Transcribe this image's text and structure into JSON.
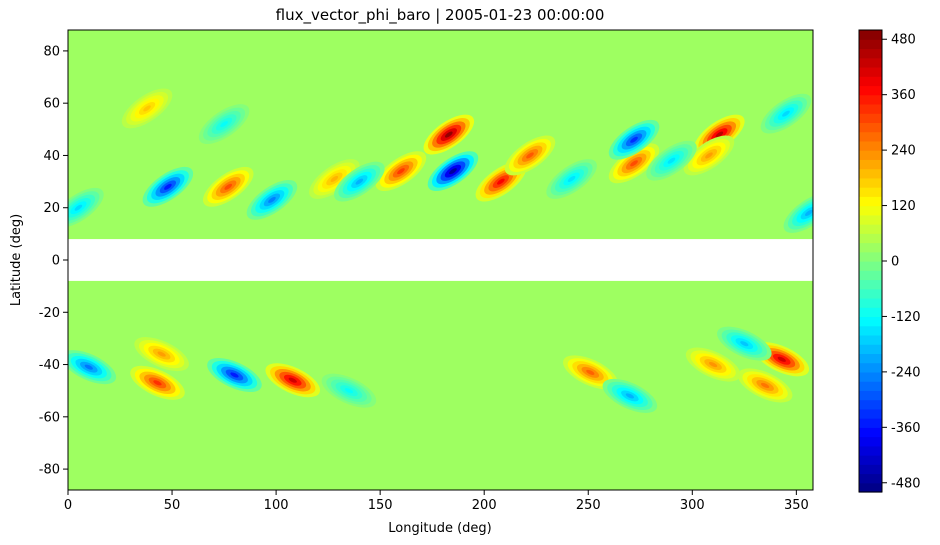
{
  "chart_data": {
    "type": "heatmap",
    "title": "flux_vector_phi_baro | 2005-01-23 00:00:00",
    "xlabel": "Longitude (deg)",
    "ylabel": "Latitude (deg)",
    "xlim": [
      0,
      358
    ],
    "ylim": [
      -88,
      88
    ],
    "x_ticks": [
      0,
      50,
      100,
      150,
      200,
      250,
      300,
      350
    ],
    "y_ticks": [
      -80,
      -60,
      -40,
      -20,
      0,
      20,
      40,
      60,
      80
    ],
    "masked_lat_band": [
      -8,
      8
    ],
    "colormap": "jet",
    "colorbar": {
      "vmin": -500,
      "vmax": 500,
      "ticks": [
        -480,
        -360,
        -240,
        -120,
        0,
        120,
        240,
        360,
        480
      ],
      "placement": "right"
    },
    "background_value": 30,
    "anomalies": [
      {
        "lon": 183,
        "lat": 48,
        "value": 480
      },
      {
        "lon": 208,
        "lat": 30,
        "value": 380
      },
      {
        "lon": 160,
        "lat": 34,
        "value": 320
      },
      {
        "lon": 222,
        "lat": 40,
        "value": 290
      },
      {
        "lon": 77,
        "lat": 28,
        "value": 300
      },
      {
        "lon": 313,
        "lat": 48,
        "value": 440
      },
      {
        "lon": 308,
        "lat": 40,
        "value": 220
      },
      {
        "lon": 272,
        "lat": 37,
        "value": 300
      },
      {
        "lon": 128,
        "lat": 31,
        "value": 200
      },
      {
        "lon": 38,
        "lat": 58,
        "value": 180
      },
      {
        "lon": 185,
        "lat": 34,
        "value": -470
      },
      {
        "lon": 48,
        "lat": 28,
        "value": -350
      },
      {
        "lon": 272,
        "lat": 46,
        "value": -330
      },
      {
        "lon": 98,
        "lat": 23,
        "value": -250
      },
      {
        "lon": 140,
        "lat": 30,
        "value": -200
      },
      {
        "lon": 356,
        "lat": 18,
        "value": -200
      },
      {
        "lon": 5,
        "lat": 20,
        "value": -160
      },
      {
        "lon": 290,
        "lat": 38,
        "value": -150
      },
      {
        "lon": 242,
        "lat": 31,
        "value": -150
      },
      {
        "lon": 75,
        "lat": 52,
        "value": -120
      },
      {
        "lon": 345,
        "lat": 56,
        "value": -160
      },
      {
        "lon": 108,
        "lat": -46,
        "value": 420
      },
      {
        "lon": 43,
        "lat": -47,
        "value": 330
      },
      {
        "lon": 45,
        "lat": -36,
        "value": 220
      },
      {
        "lon": 343,
        "lat": -38,
        "value": 420
      },
      {
        "lon": 335,
        "lat": -48,
        "value": 260
      },
      {
        "lon": 310,
        "lat": -40,
        "value": 230
      },
      {
        "lon": 251,
        "lat": -43,
        "value": 280
      },
      {
        "lon": 80,
        "lat": -44,
        "value": -350
      },
      {
        "lon": 10,
        "lat": -41,
        "value": -260
      },
      {
        "lon": 270,
        "lat": -52,
        "value": -200
      },
      {
        "lon": 325,
        "lat": -32,
        "value": -180
      },
      {
        "lon": 135,
        "lat": -50,
        "value": -120
      }
    ]
  }
}
